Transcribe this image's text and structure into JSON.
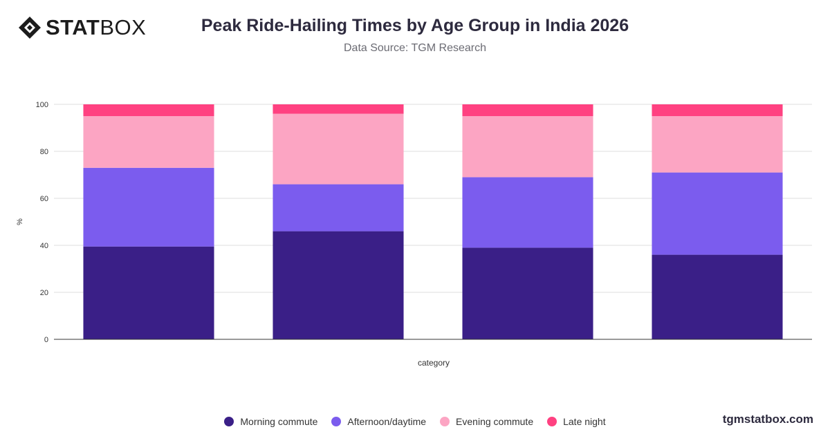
{
  "header": {
    "logo_bold": "STAT",
    "logo_light": "BOX",
    "title": "Peak Ride-Hailing Times by Age Group in India 2026",
    "subtitle": "Data Source: TGM Research"
  },
  "footer": {
    "site": "tgmstatbox.com"
  },
  "chart_data": {
    "type": "bar",
    "stacked": true,
    "title": "Peak Ride-Hailing Times by Age Group in India 2026",
    "subtitle": "Data Source: TGM Research",
    "xlabel": "category",
    "ylabel": "%",
    "ylim": [
      0,
      100
    ],
    "yticks": [
      0,
      20,
      40,
      60,
      80,
      100
    ],
    "grid": true,
    "legend_position": "bottom",
    "categories": [
      "",
      "",
      "",
      ""
    ],
    "series": [
      {
        "name": "Morning commute",
        "color": "#3a1f87",
        "values": [
          39.5,
          46,
          39,
          36
        ]
      },
      {
        "name": "Afternoon/daytime",
        "color": "#7b5cee",
        "values": [
          33.5,
          20,
          30,
          35
        ]
      },
      {
        "name": "Evening commute",
        "color": "#fca5c3",
        "values": [
          22,
          30,
          26,
          24
        ]
      },
      {
        "name": "Late night",
        "color": "#ff4181",
        "values": [
          5,
          4,
          5,
          5
        ]
      }
    ]
  }
}
